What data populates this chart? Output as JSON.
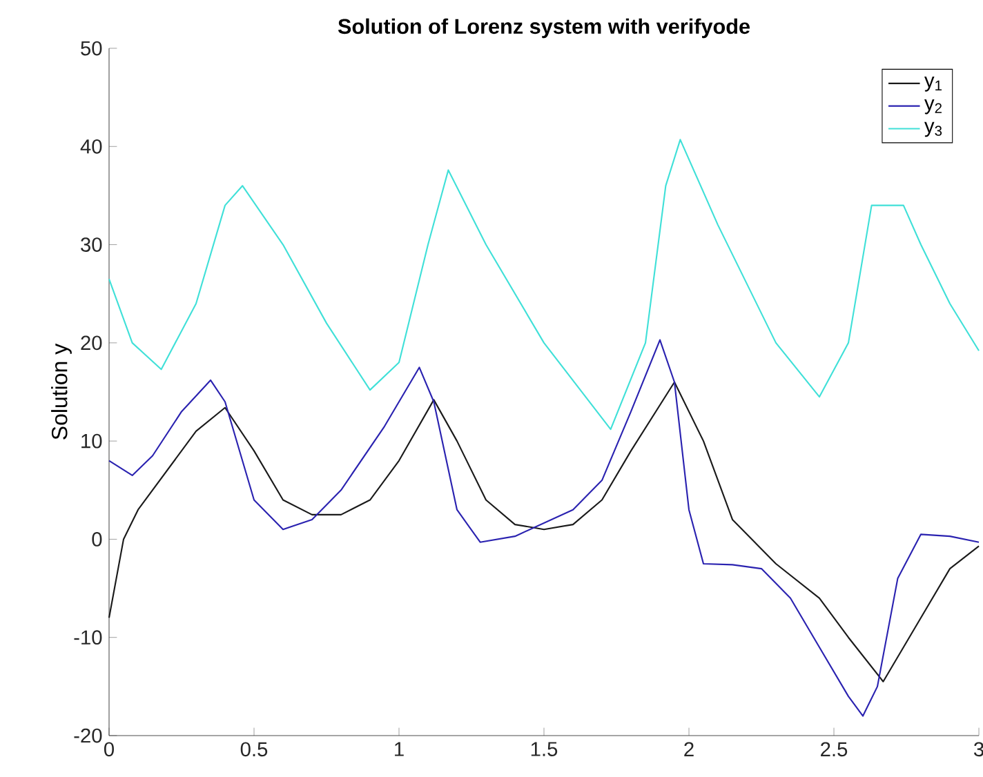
{
  "chart_data": {
    "type": "line",
    "title": "**Solution of Lorenz system with verifyode**",
    "ylabel": "Solution y",
    "xlim": [
      0,
      3
    ],
    "ylim": [
      -20,
      50
    ],
    "xticks": [
      0,
      0.5,
      1,
      1.5,
      2,
      2.5,
      3
    ],
    "yticks": [
      -20,
      -10,
      0,
      10,
      20,
      30,
      40,
      50
    ],
    "grid": false,
    "legend": "top right",
    "marker": "none",
    "line_style": "solid",
    "series": [
      {
        "name": "y$_{1}$",
        "color": "#1a1a1a",
        "x": [
          0,
          0.05,
          0.1,
          0.2,
          0.3,
          0.4,
          0.5,
          0.6,
          0.7,
          0.8,
          0.9,
          1.0,
          1.12,
          1.2,
          1.3,
          1.4,
          1.5,
          1.6,
          1.7,
          1.8,
          1.95,
          2.05,
          2.15,
          2.3,
          2.45,
          2.55,
          2.67,
          2.8,
          2.9,
          3.0
        ],
        "values": [
          -8,
          0,
          3,
          7,
          11,
          13.4,
          9,
          4,
          2.5,
          2.5,
          4,
          8,
          14.2,
          10,
          4,
          1.5,
          1,
          1.5,
          4,
          9,
          16,
          10,
          2,
          -2.5,
          -6,
          -10,
          -14.5,
          -8,
          -3,
          -0.7
        ]
      },
      {
        "name": "y$_{2}$",
        "color": "#2a22b0",
        "x": [
          0,
          0.08,
          0.15,
          0.25,
          0.35,
          0.4,
          0.5,
          0.6,
          0.7,
          0.8,
          0.95,
          1.07,
          1.12,
          1.2,
          1.28,
          1.4,
          1.6,
          1.7,
          1.8,
          1.9,
          1.95,
          2.0,
          2.05,
          2.15,
          2.25,
          2.35,
          2.45,
          2.55,
          2.6,
          2.65,
          2.72,
          2.8,
          2.9,
          3.0
        ],
        "values": [
          8,
          6.5,
          8.5,
          13,
          16.2,
          14,
          4,
          1,
          2,
          5,
          11.5,
          17.5,
          14,
          3,
          -0.3,
          0.3,
          3,
          6,
          13,
          20.3,
          16,
          3,
          -2.5,
          -2.6,
          -3,
          -6,
          -11,
          -16,
          -18,
          -15,
          -4,
          0.5,
          0.3,
          -0.3
        ]
      },
      {
        "name": "y$_{3}$",
        "color": "#40e0d8",
        "x": [
          0,
          0.08,
          0.18,
          0.3,
          0.4,
          0.46,
          0.6,
          0.75,
          0.9,
          1.0,
          1.1,
          1.17,
          1.3,
          1.5,
          1.73,
          1.85,
          1.92,
          1.97,
          2.1,
          2.3,
          2.45,
          2.55,
          2.63,
          2.74,
          2.8,
          2.9,
          3.0
        ],
        "values": [
          26.5,
          20,
          17.3,
          24,
          34,
          36,
          30,
          22,
          15.2,
          18,
          30,
          37.6,
          30,
          20,
          11.2,
          20,
          36,
          40.7,
          32,
          20,
          14.5,
          20,
          34,
          34,
          30,
          24,
          19.2
        ]
      }
    ]
  }
}
